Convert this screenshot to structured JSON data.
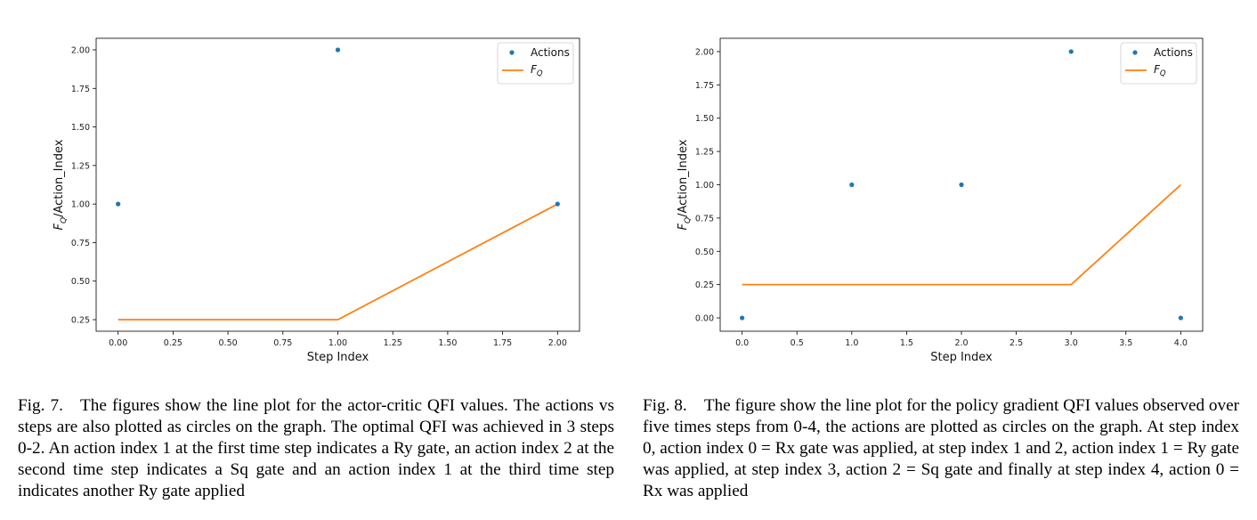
{
  "chart_data": [
    {
      "type": "scatter+line",
      "xlabel": "Step Index",
      "ylabel_main": "F",
      "ylabel_sub": "Q",
      "ylabel_rest": "/Action_Index",
      "xlim": [
        -0.1,
        2.1
      ],
      "ylim": [
        0.175,
        2.075
      ],
      "xticks": [
        "0.00",
        "0.25",
        "0.50",
        "0.75",
        "1.00",
        "1.25",
        "1.50",
        "1.75",
        "2.00"
      ],
      "xtick_values": [
        0,
        0.25,
        0.5,
        0.75,
        1.0,
        1.25,
        1.5,
        1.75,
        2.0
      ],
      "yticks": [
        "0.25",
        "0.50",
        "0.75",
        "1.00",
        "1.25",
        "1.50",
        "1.75",
        "2.00"
      ],
      "ytick_values": [
        0.25,
        0.5,
        0.75,
        1.0,
        1.25,
        1.5,
        1.75,
        2.0
      ],
      "legend_position": "top-right",
      "series": [
        {
          "name": "Actions",
          "kind": "scatter",
          "color": "#1f77b4",
          "x": [
            0,
            1,
            2
          ],
          "y": [
            1,
            2,
            1
          ]
        },
        {
          "name_main": "F",
          "name_sub": "Q",
          "kind": "line",
          "color": "#ff7f0e",
          "x": [
            0,
            1,
            2
          ],
          "y": [
            0.25,
            0.25,
            1.0
          ]
        }
      ]
    },
    {
      "type": "scatter+line",
      "xlabel": "Step Index",
      "ylabel_main": "F",
      "ylabel_sub": "Q",
      "ylabel_rest": "/Action_Index",
      "xlim": [
        -0.2,
        4.2
      ],
      "ylim": [
        -0.1,
        2.1
      ],
      "xticks": [
        "0.0",
        "0.5",
        "1.0",
        "1.5",
        "2.0",
        "2.5",
        "3.0",
        "3.5",
        "4.0"
      ],
      "xtick_values": [
        0,
        0.5,
        1.0,
        1.5,
        2.0,
        2.5,
        3.0,
        3.5,
        4.0
      ],
      "yticks": [
        "0.00",
        "0.25",
        "0.50",
        "0.75",
        "1.00",
        "1.25",
        "1.50",
        "1.75",
        "2.00"
      ],
      "ytick_values": [
        0,
        0.25,
        0.5,
        0.75,
        1.0,
        1.25,
        1.5,
        1.75,
        2.0
      ],
      "legend_position": "top-right",
      "series": [
        {
          "name": "Actions",
          "kind": "scatter",
          "color": "#1f77b4",
          "x": [
            0,
            1,
            2,
            3,
            4
          ],
          "y": [
            0,
            1,
            1,
            2,
            0
          ]
        },
        {
          "name_main": "F",
          "name_sub": "Q",
          "kind": "line",
          "color": "#ff7f0e",
          "x": [
            0,
            1,
            2,
            3,
            4
          ],
          "y": [
            0.25,
            0.25,
            0.25,
            0.25,
            1.0
          ]
        }
      ]
    }
  ],
  "captions": {
    "fig7": "Fig. 7. The figures show the line plot for the actor-critic QFI values. The actions vs steps are also plotted as circles on the graph. The optimal QFI was achieved in 3 steps 0-2. An action index 1 at the first time step indicates a Ry gate, an action index 2 at the second time step indicates a Sq gate and an action index 1 at the third time step indicates another Ry gate applied",
    "fig8": "Fig. 8. The figure show the line plot for the policy gradient QFI values observed over five times steps from 0-4, the actions are plotted as circles on the graph. At step index 0, action index 0 = Rx gate was applied, at step index 1 and 2, action index 1 = Ry gate was applied, at step index 3, action 2 = Sq gate and finally at step index 4, action 0 = Rx was applied"
  }
}
